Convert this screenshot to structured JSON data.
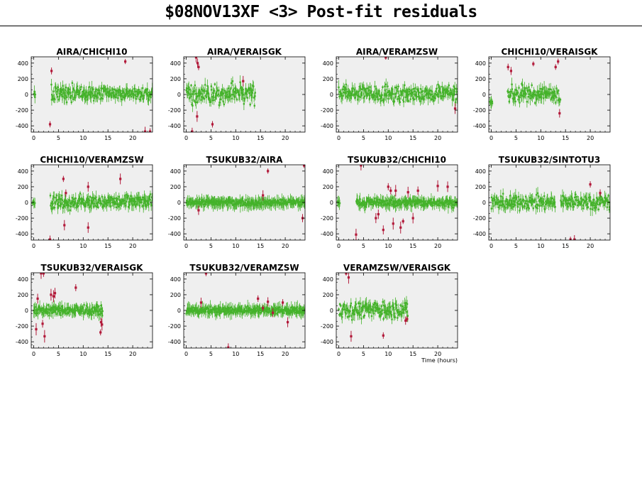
{
  "page": {
    "title": "$08NOV13XF <3> Post-fit residuals",
    "time_label": "Time (hours)"
  },
  "colors": {
    "plot_bg": "#efefef",
    "good": "#44b22a",
    "flagged": "#b21a3a",
    "axis": "#000000"
  },
  "chart_data": [
    {
      "type": "scatter",
      "title": "AIRA/CHICHI10",
      "xlim": [
        -0.5,
        24
      ],
      "ylim": [
        -480,
        480
      ],
      "xticks": [
        0,
        5,
        10,
        15,
        20
      ],
      "yticks": [
        -400,
        -200,
        0,
        200,
        400
      ],
      "segments": [
        {
          "x": [
            0,
            0.4
          ],
          "ymin": -100,
          "ymax": 100
        },
        {
          "x": [
            3.5,
            14
          ],
          "ymin": -160,
          "ymax": 180
        },
        {
          "x": [
            14,
            24
          ],
          "ymin": -130,
          "ymax": 150
        }
      ],
      "flagged": [
        [
          3.3,
          -380
        ],
        [
          3.6,
          300
        ],
        [
          18.5,
          420
        ],
        [
          23.5,
          -480
        ],
        [
          22.5,
          -480
        ]
      ]
    },
    {
      "type": "scatter",
      "title": "AIRA/VERAISGK",
      "xlim": [
        -0.5,
        24
      ],
      "ylim": [
        -480,
        480
      ],
      "xticks": [
        0,
        5,
        10,
        15,
        20
      ],
      "yticks": [
        -400,
        -200,
        0,
        200,
        400
      ],
      "segments": [
        {
          "x": [
            0,
            14
          ],
          "ymin": -180,
          "ymax": 200
        }
      ],
      "flagged": [
        [
          2.0,
          480
        ],
        [
          2.3,
          400
        ],
        [
          2.5,
          350
        ],
        [
          1.2,
          -480
        ],
        [
          5.3,
          -380
        ],
        [
          2.2,
          -280
        ],
        [
          11.5,
          170
        ]
      ]
    },
    {
      "type": "scatter",
      "title": "AIRA/VERAMZSW",
      "xlim": [
        -0.5,
        24
      ],
      "ylim": [
        -480,
        480
      ],
      "xticks": [
        0,
        5,
        10,
        15,
        20
      ],
      "yticks": [
        -400,
        -200,
        0,
        200,
        400
      ],
      "segments": [
        {
          "x": [
            0,
            24
          ],
          "ymin": -150,
          "ymax": 170
        }
      ],
      "flagged": [
        [
          23.5,
          -180
        ],
        [
          9.5,
          480
        ]
      ]
    },
    {
      "type": "scatter",
      "title": "CHICHI10/VERAISGK",
      "xlim": [
        -0.5,
        24
      ],
      "ylim": [
        -480,
        480
      ],
      "xticks": [
        0,
        5,
        10,
        15,
        20
      ],
      "yticks": [
        -400,
        -200,
        0,
        200,
        400
      ],
      "segments": [
        {
          "x": [
            -0.3,
            0.3
          ],
          "ymin": -120,
          "ymax": -80
        },
        {
          "x": [
            3.3,
            14
          ],
          "ymin": -170,
          "ymax": 180
        }
      ],
      "flagged": [
        [
          3.4,
          350
        ],
        [
          4.0,
          300
        ],
        [
          8.5,
          390
        ],
        [
          13.0,
          350
        ],
        [
          13.5,
          420
        ],
        [
          13.8,
          -240
        ]
      ]
    },
    {
      "type": "scatter",
      "title": "CHICHI10/VERAMZSW",
      "xlim": [
        -0.5,
        24
      ],
      "ylim": [
        -480,
        480
      ],
      "xticks": [
        0,
        5,
        10,
        15,
        20
      ],
      "yticks": [
        -400,
        -200,
        0,
        200,
        400
      ],
      "segments": [
        {
          "x": [
            -0.3,
            0.3
          ],
          "ymin": -50,
          "ymax": 50
        },
        {
          "x": [
            3.3,
            24
          ],
          "ymin": -140,
          "ymax": 150
        }
      ],
      "flagged": [
        [
          3.3,
          -480
        ],
        [
          6.0,
          300
        ],
        [
          6.2,
          -290
        ],
        [
          6.5,
          120
        ],
        [
          11.0,
          200
        ],
        [
          11.0,
          -320
        ],
        [
          17.5,
          300
        ]
      ]
    },
    {
      "type": "scatter",
      "title": "TSUKUB32/AIRA",
      "xlim": [
        -0.5,
        24
      ],
      "ylim": [
        -480,
        480
      ],
      "xticks": [
        0,
        5,
        10,
        15,
        20
      ],
      "yticks": [
        -400,
        -200,
        0,
        200,
        400
      ],
      "segments": [
        {
          "x": [
            0,
            24
          ],
          "ymin": -70,
          "ymax": 70
        }
      ],
      "flagged": [
        [
          16.5,
          400
        ],
        [
          23.5,
          -200
        ],
        [
          23.8,
          480
        ],
        [
          15.5,
          90
        ],
        [
          2.5,
          -100
        ]
      ]
    },
    {
      "type": "scatter",
      "title": "TSUKUB32/CHICHI10",
      "xlim": [
        -0.5,
        24
      ],
      "ylim": [
        -480,
        480
      ],
      "xticks": [
        0,
        5,
        10,
        15,
        20
      ],
      "yticks": [
        -400,
        -200,
        0,
        200,
        400
      ],
      "segments": [
        {
          "x": [
            -0.3,
            0.3
          ],
          "ymin": -30,
          "ymax": 30
        },
        {
          "x": [
            3.5,
            24
          ],
          "ymin": -80,
          "ymax": 80
        }
      ],
      "flagged": [
        [
          3.5,
          -410
        ],
        [
          7.5,
          -200
        ],
        [
          8.0,
          -150
        ],
        [
          9.0,
          -350
        ],
        [
          10.0,
          200
        ],
        [
          10.5,
          150
        ],
        [
          11.0,
          -270
        ],
        [
          11.5,
          150
        ],
        [
          12.5,
          -320
        ],
        [
          13.0,
          -240
        ],
        [
          14.0,
          130
        ],
        [
          15.0,
          -200
        ],
        [
          16.0,
          150
        ],
        [
          20.0,
          210
        ],
        [
          22.0,
          200
        ],
        [
          4.5,
          480
        ]
      ]
    },
    {
      "type": "scatter",
      "title": "TSUKUB32/SINTOTU3",
      "xlim": [
        -0.5,
        24
      ],
      "ylim": [
        -480,
        480
      ],
      "xticks": [
        0,
        5,
        10,
        15,
        20
      ],
      "yticks": [
        -400,
        -200,
        0,
        200,
        400
      ],
      "segments": [
        {
          "x": [
            0,
            13
          ],
          "ymin": -150,
          "ymax": 150
        },
        {
          "x": [
            14,
            24
          ],
          "ymin": -150,
          "ymax": 170
        }
      ],
      "flagged": [
        [
          16.0,
          -480
        ],
        [
          16.8,
          -480
        ],
        [
          20.0,
          230
        ],
        [
          22.0,
          120
        ]
      ]
    },
    {
      "type": "scatter",
      "title": "TSUKUB32/VERAISGK",
      "xlim": [
        -0.5,
        24
      ],
      "ylim": [
        -480,
        480
      ],
      "xticks": [
        0,
        5,
        10,
        15,
        20
      ],
      "yticks": [
        -400,
        -200,
        0,
        200,
        400
      ],
      "segments": [
        {
          "x": [
            0,
            14
          ],
          "ymin": -90,
          "ymax": 90
        }
      ],
      "flagged": [
        [
          0.5,
          -240
        ],
        [
          0.8,
          150
        ],
        [
          1.5,
          480
        ],
        [
          2.0,
          480
        ],
        [
          1.8,
          -170
        ],
        [
          2.2,
          -330
        ],
        [
          3.5,
          200
        ],
        [
          4.0,
          180
        ],
        [
          4.3,
          220
        ],
        [
          8.5,
          290
        ],
        [
          13.5,
          -280
        ],
        [
          13.6,
          -150
        ],
        [
          13.8,
          -180
        ]
      ]
    },
    {
      "type": "scatter",
      "title": "TSUKUB32/VERAMZSW",
      "xlim": [
        -0.5,
        24
      ],
      "ylim": [
        -480,
        480
      ],
      "xticks": [
        0,
        5,
        10,
        15,
        20
      ],
      "yticks": [
        -400,
        -200,
        0,
        200,
        400
      ],
      "segments": [
        {
          "x": [
            0,
            24
          ],
          "ymin": -70,
          "ymax": 70
        }
      ],
      "flagged": [
        [
          4.0,
          480
        ],
        [
          8.5,
          -480
        ],
        [
          3.0,
          100
        ],
        [
          14.5,
          150
        ],
        [
          15.5,
          30
        ],
        [
          16.5,
          110
        ],
        [
          17.5,
          -30
        ],
        [
          19.5,
          100
        ],
        [
          20.5,
          -150
        ]
      ]
    },
    {
      "type": "scatter",
      "title": "VERAMZSW/VERAISGK",
      "xlim": [
        -0.5,
        24
      ],
      "ylim": [
        -480,
        480
      ],
      "xticks": [
        0,
        5,
        10,
        15,
        20
      ],
      "yticks": [
        -400,
        -200,
        0,
        200,
        400
      ],
      "segments": [
        {
          "x": [
            0,
            14
          ],
          "ymin": -160,
          "ymax": 180
        }
      ],
      "flagged": [
        [
          1.5,
          480
        ],
        [
          2.0,
          420
        ],
        [
          2.5,
          -330
        ],
        [
          9.0,
          -320
        ],
        [
          13.5,
          -130
        ],
        [
          13.8,
          -110
        ]
      ]
    }
  ]
}
